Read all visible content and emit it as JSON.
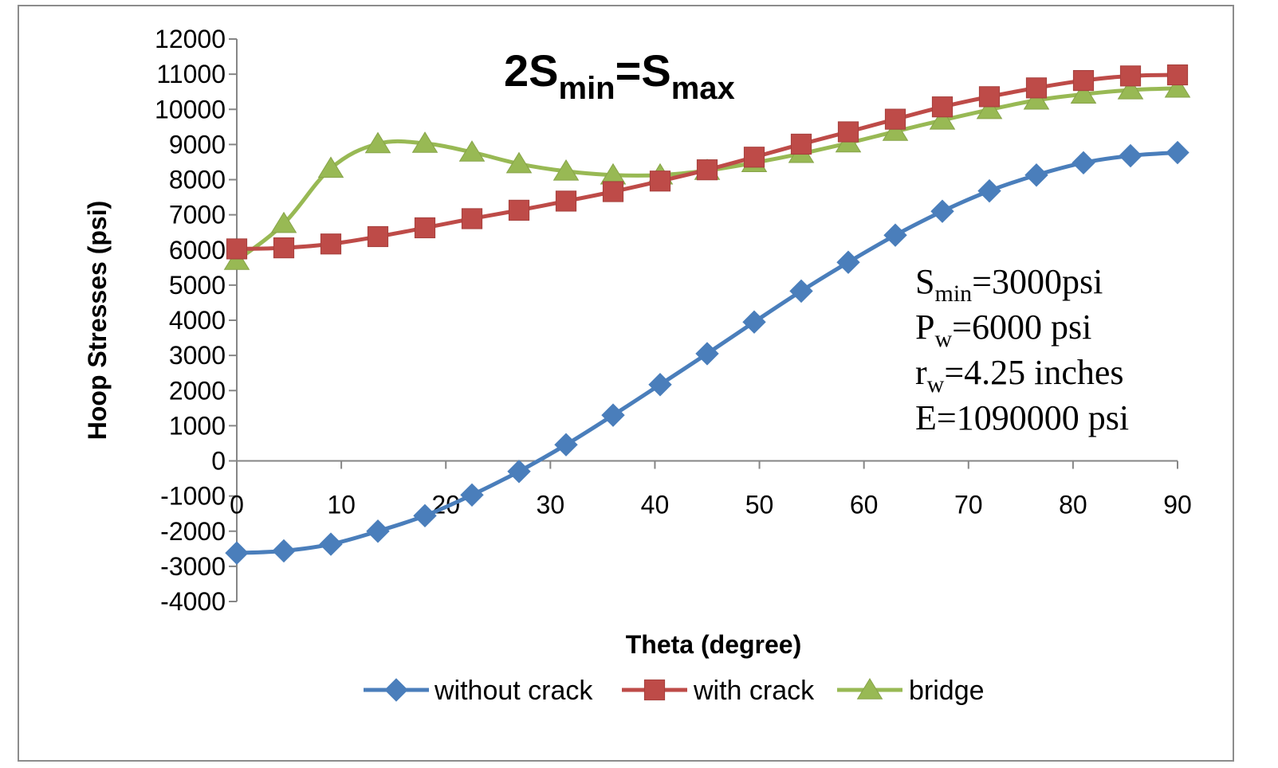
{
  "chart_data": {
    "type": "line",
    "title": {
      "base": "2S",
      "sub1": "min",
      "mid": "=S",
      "sub2": "max"
    },
    "xlabel": "Theta (degree)",
    "ylabel": "Hoop Stresses (psi)",
    "xlim": [
      0,
      90
    ],
    "ylim": [
      -4000,
      12000
    ],
    "x_ticks": [
      0,
      10,
      20,
      30,
      40,
      50,
      60,
      70,
      80,
      90
    ],
    "y_ticks": [
      -4000,
      -3000,
      -2000,
      -1000,
      0,
      1000,
      2000,
      3000,
      4000,
      5000,
      6000,
      7000,
      8000,
      9000,
      10000,
      11000,
      12000
    ],
    "grid": false,
    "legend_position": "bottom",
    "x": [
      0,
      4.5,
      9,
      13.5,
      18,
      22.5,
      27,
      31.5,
      36,
      40.5,
      45,
      49.5,
      54,
      58.5,
      63,
      67.5,
      72,
      76.5,
      81,
      85.5,
      90
    ],
    "series": [
      {
        "name": "without crack",
        "color": "#4a7ebb",
        "marker": "diamond",
        "values": [
          -2620,
          -2560,
          -2370,
          -2000,
          -1560,
          -970,
          -300,
          460,
          1300,
          2170,
          3050,
          3950,
          4830,
          5650,
          6420,
          7100,
          7680,
          8130,
          8480,
          8680,
          8770
        ]
      },
      {
        "name": "with crack",
        "color": "#be4b48",
        "marker": "square",
        "values": [
          6030,
          6060,
          6170,
          6380,
          6630,
          6890,
          7130,
          7390,
          7660,
          7960,
          8280,
          8640,
          9010,
          9360,
          9720,
          10070,
          10360,
          10610,
          10820,
          10950,
          10980
        ]
      },
      {
        "name": "bridge",
        "color": "#98b954",
        "marker": "triangle",
        "values": [
          5700,
          6750,
          8320,
          9020,
          9030,
          8780,
          8450,
          8240,
          8130,
          8130,
          8260,
          8480,
          8740,
          9040,
          9370,
          9690,
          9990,
          10260,
          10430,
          10550,
          10600
        ]
      }
    ],
    "annotations": [
      {
        "base": "S",
        "sub": "min",
        "rest": "=3000psi"
      },
      {
        "base": "P",
        "sub": "w",
        "rest": "=6000 psi"
      },
      {
        "base": "r",
        "sub": "w",
        "rest": "=4.25 inches"
      },
      {
        "base": "E=1090000 psi",
        "sub": "",
        "rest": ""
      }
    ]
  }
}
